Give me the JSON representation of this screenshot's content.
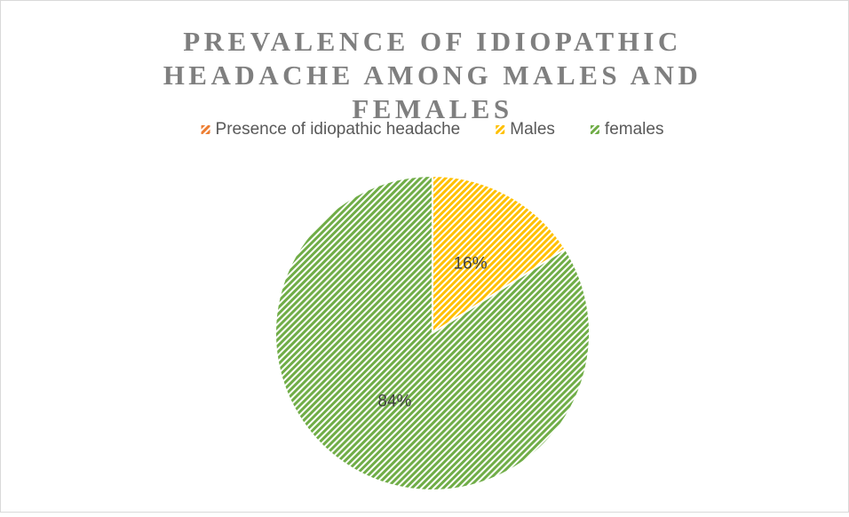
{
  "chart_data": {
    "type": "pie",
    "title": "PREVALENCE OF IDIOPATHIC HEADACHE AMONG MALES AND FEMALES",
    "categories": [
      "Presence of idiopathic headache",
      "Males",
      "females"
    ],
    "values": [
      0,
      16,
      84
    ],
    "value_labels": [
      null,
      "16%",
      "84%"
    ],
    "colors": [
      "#ed7d31",
      "#ffc000",
      "#70ad47"
    ],
    "legend": "top"
  }
}
